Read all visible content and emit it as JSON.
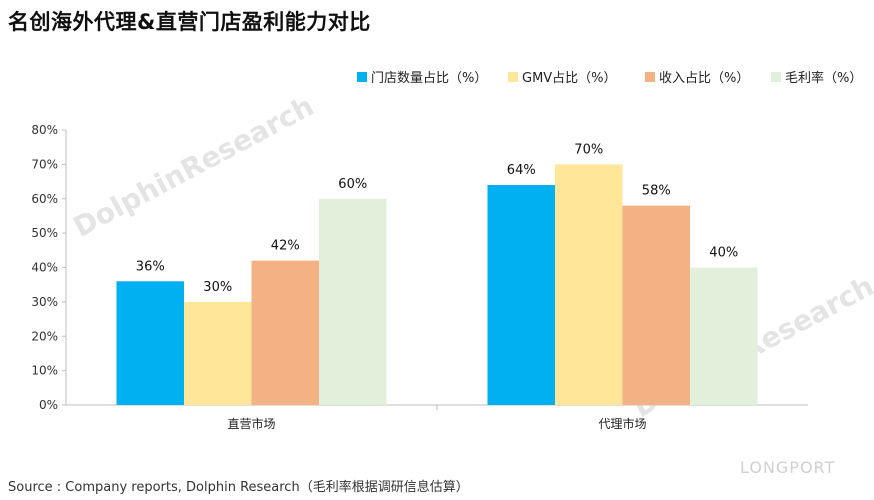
{
  "title": "名创海外代理&直营门店盈利能力对比",
  "source": "Source : Company reports, Dolphin Research（毛利率根据调研信息估算）",
  "watermark": "DolphinResearch",
  "brand": "LONGPORT",
  "chart_data": {
    "type": "bar",
    "categories": [
      "直营市场",
      "代理市场"
    ],
    "series": [
      {
        "name": "门店数量占比（%）",
        "color": "#00B0F0",
        "values": [
          36,
          64
        ]
      },
      {
        "name": "GMV占比（%）",
        "color": "#FFE699",
        "values": [
          30,
          70
        ]
      },
      {
        "name": "收入占比（%）",
        "color": "#F4B183",
        "values": [
          42,
          58
        ]
      },
      {
        "name": "毛利率（%）",
        "color": "#E2EFDA",
        "values": [
          60,
          40
        ]
      }
    ],
    "ylim": [
      0,
      80
    ],
    "yticks": [
      0,
      10,
      20,
      30,
      40,
      50,
      60,
      70,
      80
    ],
    "ytick_suffix": "%",
    "value_suffix": "%",
    "legend_position": "top-right",
    "grid": false
  }
}
